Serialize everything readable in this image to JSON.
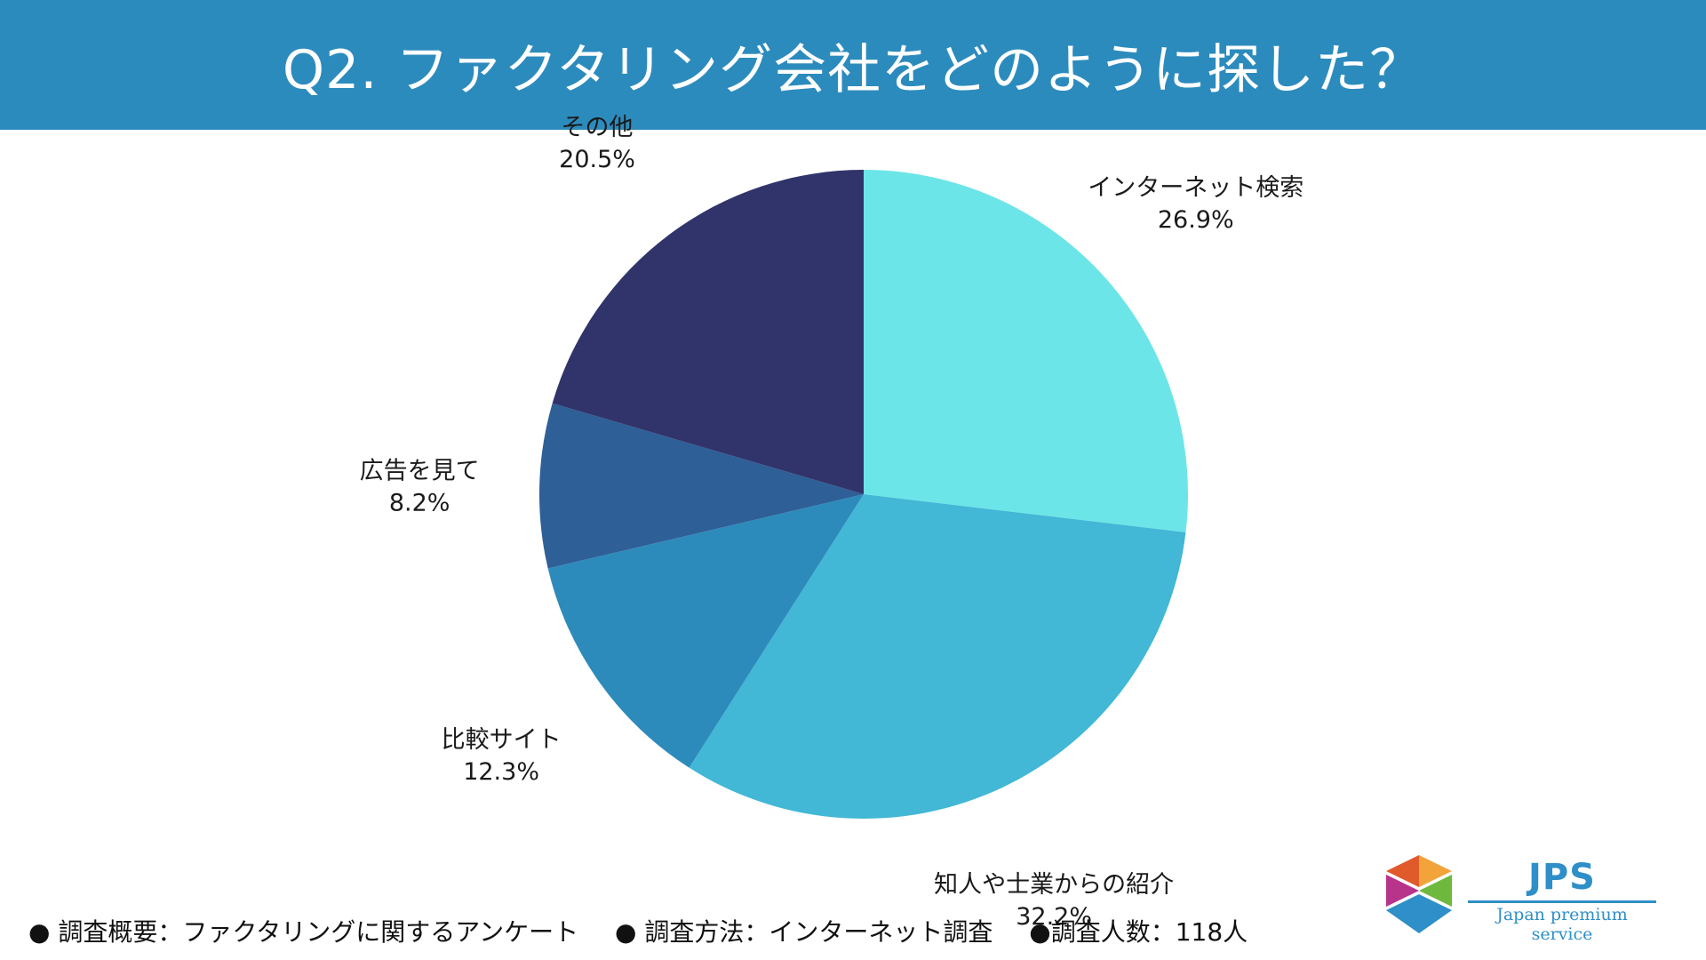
{
  "header": {
    "title": "Q2. ファクタリング会社をどのように探した？"
  },
  "chart_data": {
    "type": "pie",
    "start_angle_deg": 0,
    "direction": "clockwise",
    "slices": [
      {
        "label": "インターネット検索",
        "value": 26.9,
        "display": "26.9%",
        "color": "#6ce5e8"
      },
      {
        "label": "知人や士業からの紹介",
        "value": 32.2,
        "display": "32.2%",
        "color": "#42b7d6"
      },
      {
        "label": "比較サイト",
        "value": 12.3,
        "display": "12.3%",
        "color": "#2d8bbb"
      },
      {
        "label": "広告を見て",
        "value": 8.2,
        "display": "8.2%",
        "color": "#2e5f97"
      },
      {
        "label": "その他",
        "value": 20.5,
        "display": "20.5%",
        "color": "#30346a"
      }
    ]
  },
  "footer": {
    "items": [
      "● 調査概要：ファクタリングに関するアンケート",
      "● 調査方法：インターネット調査",
      "●調査人数：118人"
    ]
  },
  "logo": {
    "abbr": "JPS",
    "name": "Japan premium service",
    "colors": [
      "#e05a2c",
      "#f2a33a",
      "#b8338a",
      "#6fb83e",
      "#2f8fc8"
    ]
  }
}
